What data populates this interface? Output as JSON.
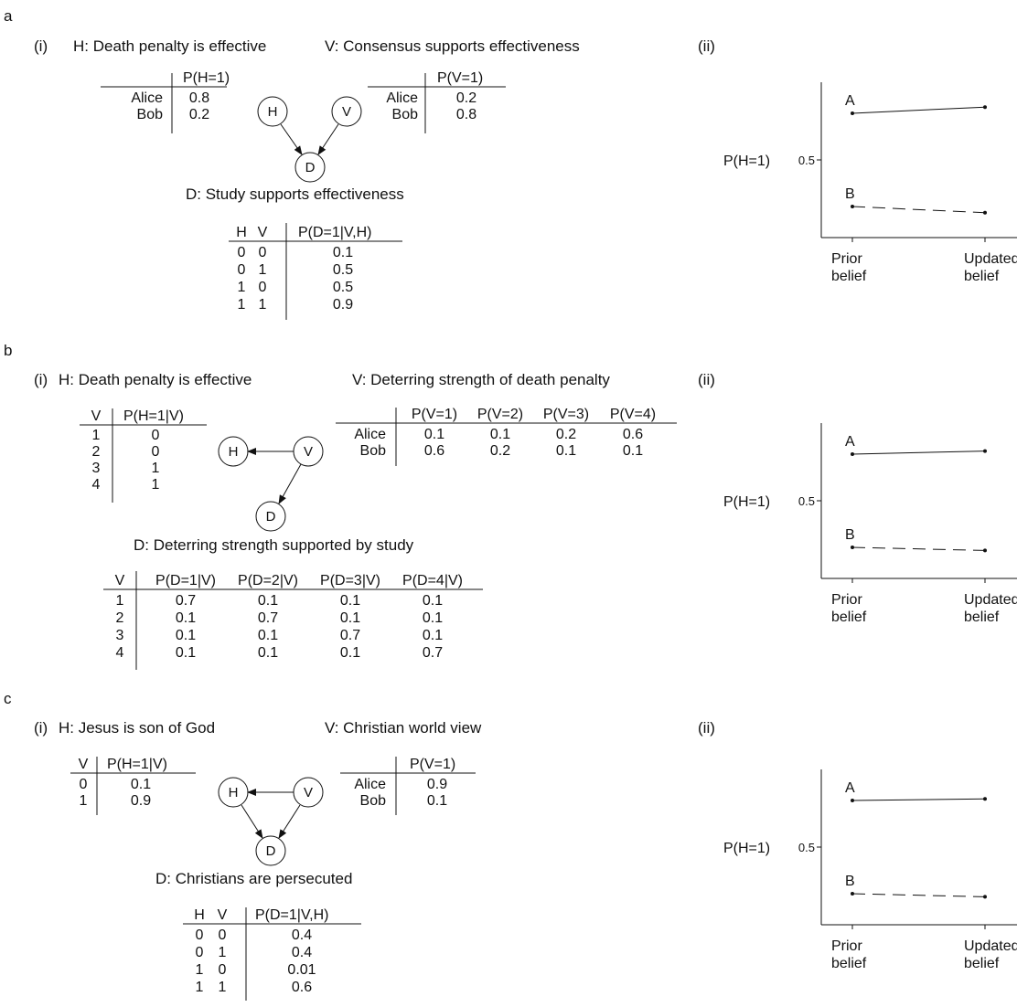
{
  "panels": [
    {
      "letter": "a",
      "i_label": "(i)",
      "ii_label": "(ii)",
      "h_title": "H: Death penalty is effective",
      "v_title": "V: Consensus supports effectiveness",
      "d_title": "D: Study supports effectiveness",
      "h_table": {
        "headers": [
          "",
          "P(H=1)"
        ],
        "rows": [
          [
            "Alice",
            "0.8"
          ],
          [
            "Bob",
            "0.2"
          ]
        ]
      },
      "v_table": {
        "headers": [
          "",
          "P(V=1)"
        ],
        "rows": [
          [
            "Alice",
            "0.2"
          ],
          [
            "Bob",
            "0.8"
          ]
        ]
      },
      "d_table": {
        "headers": [
          "H",
          "V",
          "P(D=1|V,H)"
        ],
        "rows": [
          [
            "0",
            "0",
            "0.1"
          ],
          [
            "0",
            "1",
            "0.5"
          ],
          [
            "1",
            "0",
            "0.5"
          ],
          [
            "1",
            "1",
            "0.9"
          ]
        ]
      },
      "nodes": {
        "h": "H",
        "v": "V",
        "d": "D"
      }
    },
    {
      "letter": "b",
      "i_label": "(i)",
      "ii_label": "(ii)",
      "h_title": "H: Death penalty is effective",
      "v_title": "V: Deterring strength of death penalty",
      "d_title": "D: Deterring strength supported by study",
      "h_table": {
        "headers": [
          "V",
          "P(H=1|V)"
        ],
        "rows": [
          [
            "1",
            "0"
          ],
          [
            "2",
            "0"
          ],
          [
            "3",
            "1"
          ],
          [
            "4",
            "1"
          ]
        ]
      },
      "v_table": {
        "headers": [
          "",
          "P(V=1)",
          "P(V=2)",
          "P(V=3)",
          "P(V=4)"
        ],
        "rows": [
          [
            "Alice",
            "0.1",
            "0.1",
            "0.2",
            "0.6"
          ],
          [
            "Bob",
            "0.6",
            "0.2",
            "0.1",
            "0.1"
          ]
        ]
      },
      "d_table": {
        "headers": [
          "V",
          "P(D=1|V)",
          "P(D=2|V)",
          "P(D=3|V)",
          "P(D=4|V)"
        ],
        "rows": [
          [
            "1",
            "0.7",
            "0.1",
            "0.1",
            "0.1"
          ],
          [
            "2",
            "0.1",
            "0.7",
            "0.1",
            "0.1"
          ],
          [
            "3",
            "0.1",
            "0.1",
            "0.7",
            "0.1"
          ],
          [
            "4",
            "0.1",
            "0.1",
            "0.1",
            "0.7"
          ]
        ]
      },
      "nodes": {
        "h": "H",
        "v": "V",
        "d": "D"
      }
    },
    {
      "letter": "c",
      "i_label": "(i)",
      "ii_label": "(ii)",
      "h_title": "H: Jesus is son of God",
      "v_title": "V: Christian world view",
      "d_title": "D: Christians are persecuted",
      "h_table": {
        "headers": [
          "V",
          "P(H=1|V)"
        ],
        "rows": [
          [
            "0",
            "0.1"
          ],
          [
            "1",
            "0.9"
          ]
        ]
      },
      "v_table": {
        "headers": [
          "",
          "P(V=1)"
        ],
        "rows": [
          [
            "Alice",
            "0.9"
          ],
          [
            "Bob",
            "0.1"
          ]
        ]
      },
      "d_table": {
        "headers": [
          "H",
          "V",
          "P(D=1|V,H)"
        ],
        "rows": [
          [
            "0",
            "0",
            "0.4"
          ],
          [
            "0",
            "1",
            "0.4"
          ],
          [
            "1",
            "0",
            "0.01"
          ],
          [
            "1",
            "1",
            "0.6"
          ]
        ]
      },
      "nodes": {
        "h": "H",
        "v": "V",
        "d": "D"
      }
    }
  ],
  "belief_plots": [
    {
      "ylabel": "P(H=1)",
      "ytick": "0.5",
      "x_categories": [
        [
          "Prior",
          "belief"
        ],
        [
          "Updated",
          "belief"
        ]
      ],
      "series": [
        {
          "name": "A",
          "style": "solid",
          "values": [
            0.8,
            0.84
          ]
        },
        {
          "name": "B",
          "style": "dashed",
          "values": [
            0.2,
            0.16
          ]
        }
      ]
    },
    {
      "ylabel": "P(H=1)",
      "ytick": "0.5",
      "x_categories": [
        [
          "Prior",
          "belief"
        ],
        [
          "Updated",
          "belief"
        ]
      ],
      "series": [
        {
          "name": "A",
          "style": "solid",
          "values": [
            0.8,
            0.82
          ]
        },
        {
          "name": "B",
          "style": "dashed",
          "values": [
            0.2,
            0.18
          ]
        }
      ]
    },
    {
      "ylabel": "P(H=1)",
      "ytick": "0.5",
      "x_categories": [
        [
          "Prior",
          "belief"
        ],
        [
          "Updated",
          "belief"
        ]
      ],
      "series": [
        {
          "name": "A",
          "style": "solid",
          "values": [
            0.8,
            0.81
          ]
        },
        {
          "name": "B",
          "style": "dashed",
          "values": [
            0.2,
            0.18
          ]
        }
      ]
    }
  ]
}
